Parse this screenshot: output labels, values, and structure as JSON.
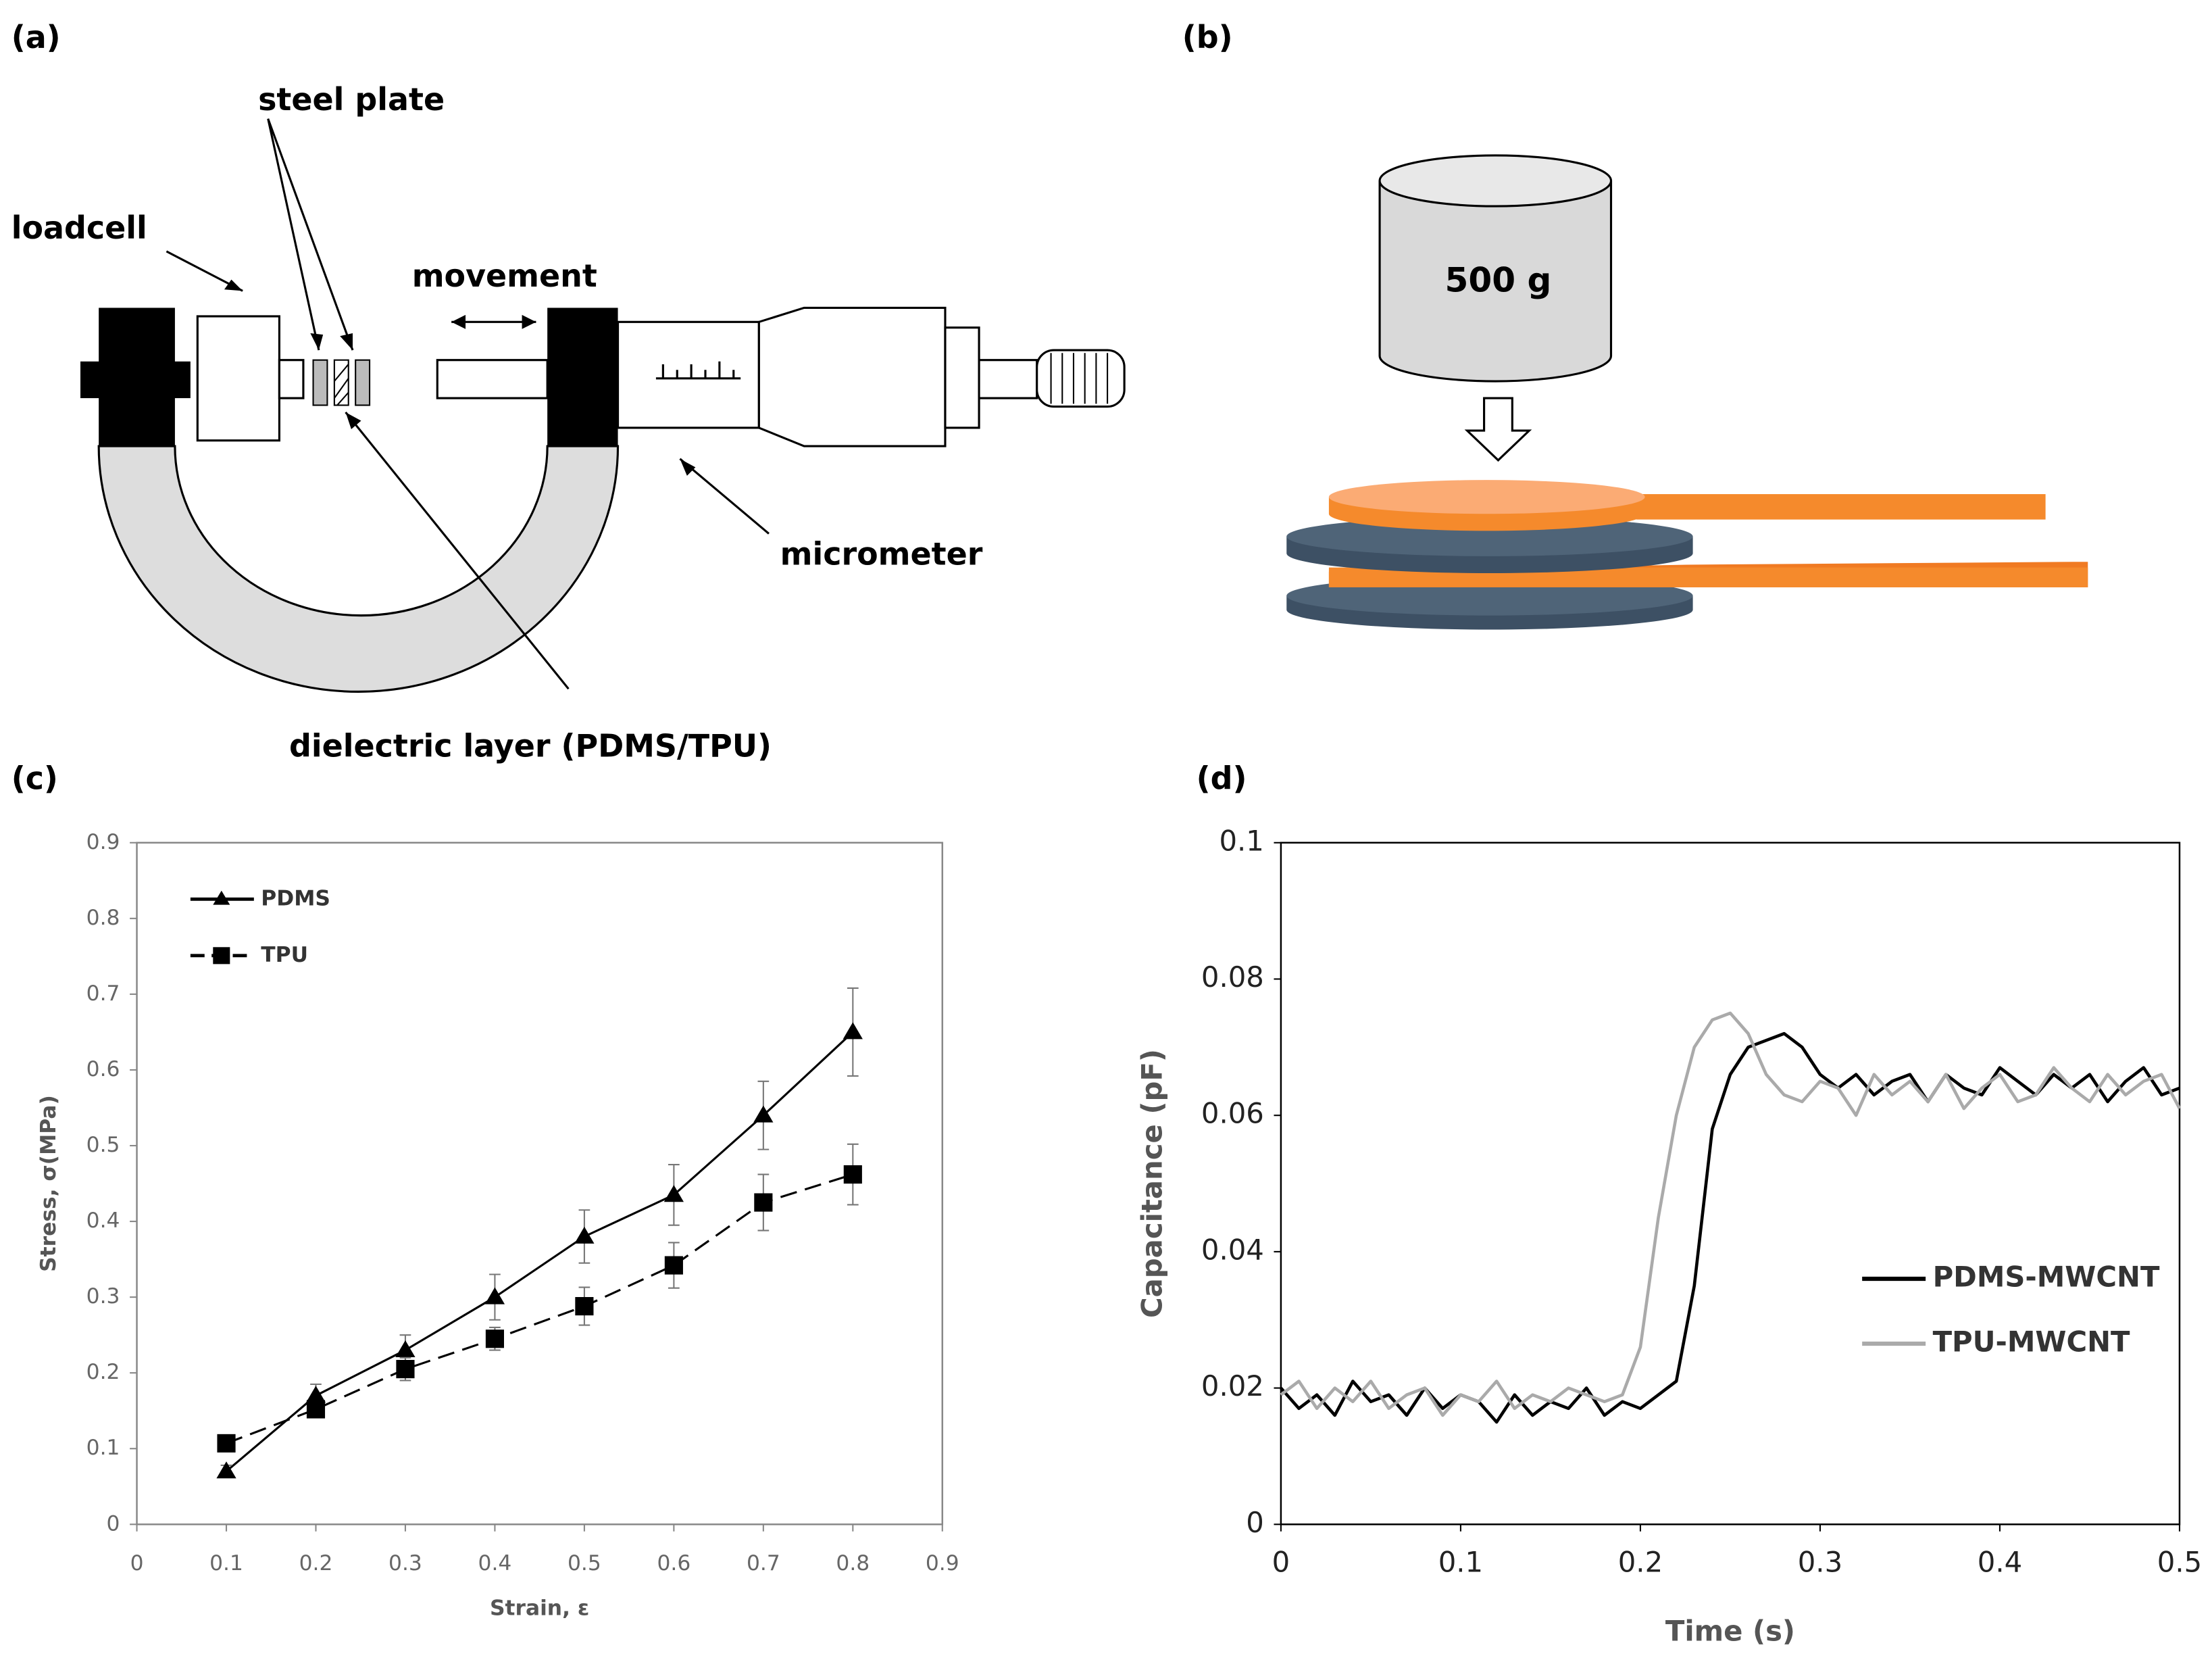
{
  "panel_a": {
    "panel_label": "(a)",
    "labels": [
      "steel plate",
      "loadcell",
      "movement",
      "micrometer",
      "dielectric layer (PDMS/TPU)"
    ]
  },
  "panel_b": {
    "panel_label": "(b)",
    "weight_label": "500 g"
  },
  "chart_data": [
    {
      "type": "line",
      "panel_label": "(c)",
      "x_label": "Strain, ε",
      "y_label": "Stress, σ(MPa)",
      "x": [
        0.1,
        0.2,
        0.3,
        0.4,
        0.5,
        0.6,
        0.7,
        0.8
      ],
      "xlim": [
        0,
        0.9
      ],
      "xticks": [
        0,
        0.1,
        0.2,
        0.3,
        0.4,
        0.5,
        0.6,
        0.7,
        0.8,
        0.9
      ],
      "ylim": [
        0,
        0.9
      ],
      "yticks": [
        0,
        0.1,
        0.2,
        0.3,
        0.4,
        0.5,
        0.6,
        0.7,
        0.8,
        0.9
      ],
      "grid": false,
      "legend": "upper left",
      "series": [
        {
          "name": "PDMS",
          "color": "#000000",
          "marker": "triangle",
          "line_style": "solid",
          "values": [
            0.07,
            0.17,
            0.23,
            0.3,
            0.38,
            0.435,
            0.54,
            0.65
          ],
          "errors": [
            0.008,
            0.015,
            0.02,
            0.03,
            0.035,
            0.04,
            0.045,
            0.058
          ]
        },
        {
          "name": "TPU",
          "color": "#000000",
          "marker": "square",
          "line_style": "dashed",
          "values": [
            0.107,
            0.152,
            0.205,
            0.245,
            0.288,
            0.342,
            0.425,
            0.462
          ],
          "errors": [
            0.008,
            0.01,
            0.015,
            0.015,
            0.025,
            0.03,
            0.037,
            0.04
          ]
        }
      ]
    },
    {
      "type": "line",
      "panel_label": "(d)",
      "x_label": "Time (s)",
      "y_label": "Capacitance (pF)",
      "x": [
        0,
        0.01,
        0.02,
        0.03,
        0.04,
        0.05,
        0.06,
        0.07,
        0.08,
        0.09,
        0.1,
        0.11,
        0.12,
        0.13,
        0.14,
        0.15,
        0.16,
        0.17,
        0.18,
        0.19,
        0.2,
        0.21,
        0.22,
        0.23,
        0.24,
        0.25,
        0.26,
        0.27,
        0.28,
        0.29,
        0.3,
        0.31,
        0.32,
        0.33,
        0.34,
        0.35,
        0.36,
        0.37,
        0.38,
        0.39,
        0.4,
        0.41,
        0.42,
        0.43,
        0.44,
        0.45,
        0.46,
        0.47,
        0.48,
        0.49,
        0.5
      ],
      "xlim": [
        0,
        0.5
      ],
      "xticks": [
        0,
        0.1,
        0.2,
        0.3,
        0.4,
        0.5
      ],
      "ylim": [
        0,
        0.1
      ],
      "yticks": [
        0,
        0.02,
        0.04,
        0.06,
        0.08,
        0.1
      ],
      "grid": false,
      "legend": "lower right",
      "series": [
        {
          "name": "PDMS-MWCNT",
          "color": "#000000",
          "line_style": "solid",
          "values": [
            0.02,
            0.017,
            0.019,
            0.016,
            0.021,
            0.018,
            0.019,
            0.016,
            0.02,
            0.017,
            0.019,
            0.018,
            0.015,
            0.019,
            0.016,
            0.018,
            0.017,
            0.02,
            0.016,
            0.018,
            0.017,
            0.019,
            0.021,
            0.035,
            0.058,
            0.066,
            0.07,
            0.071,
            0.072,
            0.07,
            0.066,
            0.064,
            0.066,
            0.063,
            0.065,
            0.066,
            0.062,
            0.066,
            0.064,
            0.063,
            0.067,
            0.065,
            0.063,
            0.066,
            0.064,
            0.066,
            0.062,
            0.065,
            0.067,
            0.063,
            0.064
          ]
        },
        {
          "name": "TPU-MWCNT",
          "color": "#aaaaaa",
          "line_style": "solid",
          "values": [
            0.019,
            0.021,
            0.017,
            0.02,
            0.018,
            0.021,
            0.017,
            0.019,
            0.02,
            0.016,
            0.019,
            0.018,
            0.021,
            0.017,
            0.019,
            0.018,
            0.02,
            0.019,
            0.018,
            0.019,
            0.026,
            0.045,
            0.06,
            0.07,
            0.074,
            0.075,
            0.072,
            0.066,
            0.063,
            0.062,
            0.065,
            0.064,
            0.06,
            0.066,
            0.063,
            0.065,
            0.062,
            0.066,
            0.061,
            0.064,
            0.066,
            0.062,
            0.063,
            0.067,
            0.064,
            0.062,
            0.066,
            0.063,
            0.065,
            0.066,
            0.061
          ]
        }
      ]
    }
  ]
}
